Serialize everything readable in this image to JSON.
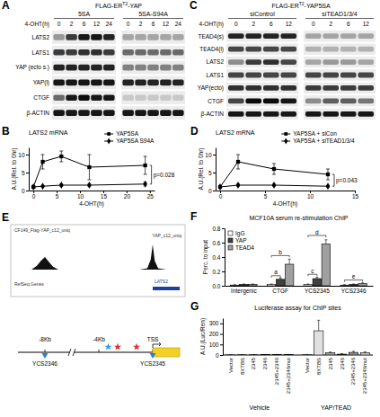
{
  "blots": [
    {
      "panel_label": "A",
      "title": {
        "base": "FLAG-ER",
        "sup": "T2",
        "rest": "-YAP"
      },
      "time_label": "4-OHT(h)",
      "groups": [
        {
          "name": "5SA",
          "times": [
            0,
            2,
            6,
            12,
            24
          ]
        },
        {
          "name": "5SA-S94A",
          "times": [
            0,
            2,
            6,
            12,
            24
          ]
        }
      ],
      "rows": [
        {
          "label": "LATS2",
          "intensity": [
            0.35,
            0.75,
            0.9,
            0.9,
            0.85,
            0.3,
            0.3,
            0.3,
            0.3,
            0.3
          ]
        },
        {
          "label": "LATS1",
          "intensity": [
            0.75,
            0.75,
            0.8,
            0.8,
            0.75,
            0.55,
            0.55,
            0.55,
            0.55,
            0.55
          ]
        },
        {
          "label": "YAP (ecto s.)",
          "intensity": [
            0.85,
            0.85,
            0.85,
            0.85,
            0.85,
            0.45,
            0.45,
            0.45,
            0.45,
            0.45
          ]
        },
        {
          "label": "YAP(l)",
          "intensity": [
            0.9,
            0.9,
            0.9,
            0.9,
            0.9,
            0.85,
            0.85,
            0.85,
            0.85,
            0.85
          ]
        },
        {
          "label": "CTGF",
          "intensity": [
            0.55,
            0.9,
            0.95,
            0.9,
            0.9,
            0.15,
            0.15,
            0.15,
            0.15,
            0.15
          ]
        },
        {
          "label": "β-ACTIN",
          "intensity": [
            0.9,
            0.9,
            0.9,
            0.9,
            0.9,
            0.9,
            0.9,
            0.9,
            0.9,
            0.9
          ]
        }
      ]
    },
    {
      "panel_label": "C",
      "title": {
        "base": "FLAG-ER",
        "sup": "T2",
        "rest": "-YAP5SA"
      },
      "time_label": "4-OHT(h)",
      "groups": [
        {
          "name": "siControl",
          "times": [
            0,
            2,
            6,
            12
          ]
        },
        {
          "name": "siTEAD1/3/4",
          "times": [
            0,
            2,
            6,
            12
          ]
        }
      ],
      "rows": [
        {
          "label": "TEAD4(s)",
          "intensity": [
            0.85,
            0.85,
            0.85,
            0.85,
            0.3,
            0.3,
            0.3,
            0.3
          ]
        },
        {
          "label": "TEAD4(l)",
          "intensity": [
            0.7,
            0.7,
            0.7,
            0.7,
            0.25,
            0.25,
            0.25,
            0.25
          ]
        },
        {
          "label": "LATS2",
          "intensity": [
            0.4,
            0.75,
            0.8,
            0.7,
            0.3,
            0.35,
            0.35,
            0.3
          ]
        },
        {
          "label": "LATS1",
          "intensity": [
            0.7,
            0.7,
            0.7,
            0.7,
            0.7,
            0.7,
            0.7,
            0.7
          ]
        },
        {
          "label": "YAP(ecto)",
          "intensity": [
            0.8,
            0.8,
            0.8,
            0.8,
            0.75,
            0.75,
            0.75,
            0.75
          ]
        },
        {
          "label": "CTGF",
          "intensity": [
            0.7,
            0.95,
            0.95,
            0.9,
            0.4,
            0.6,
            0.6,
            0.5
          ]
        },
        {
          "label": "β-ACTIN",
          "intensity": [
            0.9,
            0.9,
            0.9,
            0.9,
            0.9,
            0.9,
            0.9,
            0.9
          ]
        }
      ]
    }
  ],
  "chart_data": [
    {
      "panel_label": "B",
      "type": "line",
      "title": "LATS2 mRNA",
      "x_label": "4-OHT(h)",
      "y_label": "A.U.(Rel. to 0hr)",
      "x": [
        0,
        2,
        6,
        12,
        24
      ],
      "series": [
        {
          "name": "YAP5SA",
          "color": "#000000",
          "marker": "square",
          "values": [
            1,
            8,
            9.5,
            6.5,
            7
          ],
          "errors": [
            0,
            2,
            1.5,
            3.5,
            2.5
          ]
        },
        {
          "name": "YAP5SA S94A",
          "color": "#000000",
          "marker": "diamond",
          "values": [
            1,
            1.2,
            1.5,
            1.5,
            1.8
          ],
          "errors": [
            0,
            0.2,
            0.3,
            0.3,
            0.5
          ]
        }
      ],
      "xlim": [
        -1,
        26
      ],
      "xticks": [
        0,
        5,
        10,
        15,
        20,
        25
      ],
      "ylim": [
        0,
        12
      ],
      "yticks": [
        0,
        5,
        10
      ],
      "legend": "top right",
      "annotations": [
        {
          "text": "p=0.028",
          "x": 24,
          "y_from": 1.8,
          "y_to": 7
        }
      ]
    },
    {
      "panel_label": "D",
      "type": "line",
      "title": "LATS2 mRNA",
      "x_label": "4-OHT(h)",
      "y_label": "A.U.(Rel. to 0hr)",
      "x": [
        0,
        2,
        6,
        12
      ],
      "series": [
        {
          "name": "YAP5SA + siCon",
          "color": "#000000",
          "marker": "square",
          "values": [
            1,
            8,
            6,
            4.5
          ],
          "errors": [
            0,
            2,
            1.5,
            1.5
          ]
        },
        {
          "name": "YAP5SA + siTEAD1/3/4",
          "color": "#000000",
          "marker": "diamond",
          "values": [
            1,
            1.5,
            1.5,
            1.2
          ],
          "errors": [
            0,
            0.3,
            0.3,
            0.2
          ]
        }
      ],
      "xlim": [
        -0.5,
        15
      ],
      "xticks": [
        0,
        5,
        10,
        15
      ],
      "ylim": [
        0,
        12
      ],
      "yticks": [
        0,
        5,
        10
      ],
      "legend": "top right",
      "annotations": [
        {
          "text": "p=0.043",
          "x": 12,
          "y_from": 1.2,
          "y_to": 4.5
        }
      ]
    },
    {
      "panel_label": "F",
      "type": "bar",
      "title": "MCF10A serum re-stimulation ChIP",
      "y_label": "Perc. to input",
      "categories": [
        "Intergenic",
        "CTGF",
        "YCS2345",
        "YCS2346"
      ],
      "series": [
        {
          "name": "IgG",
          "color": "#ffffff",
          "values": [
            0.01,
            0.02,
            0.02,
            0.01
          ],
          "errors": [
            0.005,
            0.005,
            0.005,
            0.005
          ]
        },
        {
          "name": "YAP",
          "color": "#404040",
          "values": [
            0.02,
            0.09,
            0.1,
            0.02
          ],
          "errors": [
            0.005,
            0.02,
            0.02,
            0.005
          ]
        },
        {
          "name": "TEAD4",
          "color": "#a0a0a0",
          "values": [
            0.02,
            0.3,
            0.58,
            0.03
          ],
          "errors": [
            0.005,
            0.07,
            0.06,
            0.01
          ]
        }
      ],
      "ylim": [
        0,
        0.8
      ],
      "yticks": [
        {
          "value": 0,
          "label": "0.0"
        },
        0.2,
        0.4,
        0.6,
        0.8
      ],
      "legend": "top left",
      "annotations": [
        {
          "text": "a",
          "category": 1,
          "from": 0,
          "to": 1,
          "y": 0.14
        },
        {
          "text": "b",
          "category": 1,
          "from": 0,
          "to": 2,
          "y": 0.42
        },
        {
          "text": "c",
          "category": 2,
          "from": 0,
          "to": 1,
          "y": 0.16
        },
        {
          "text": "d",
          "category": 2,
          "from": 0,
          "to": 2,
          "y": 0.7
        },
        {
          "text": "e",
          "category": 3,
          "from": 0,
          "to": 2,
          "y": 0.08
        }
      ]
    },
    {
      "panel_label": "G",
      "type": "bar",
      "title": "Luciferase assay for ChIP sites",
      "y_label": "A.U.(Luc/Ren)",
      "categories": [
        "Vector",
        "8XTBS",
        "2345",
        "2346",
        "2345+2346",
        "2345+2346mut"
      ],
      "colors": [
        "#ffffff",
        "#e0e0e0",
        "#a0a0a0",
        "#404040",
        "#909090",
        "#c8c8c8"
      ],
      "series": [
        {
          "name": "Vehicle",
          "values": [
            1,
            2,
            2,
            3,
            3,
            4
          ],
          "errors": [
            0.5,
            1,
            1,
            1,
            1,
            1
          ]
        },
        {
          "name": "YAP/TEAD",
          "values": [
            2,
            230,
            20,
            8,
            25,
            22
          ],
          "errors": [
            1,
            100,
            8,
            5,
            10,
            8
          ]
        }
      ],
      "ylim": [
        0,
        350
      ],
      "yticks": [
        0,
        100,
        200,
        300
      ]
    }
  ],
  "diagram": {
    "panel_label": "E",
    "track": {
      "label": "CF149_Flag-YAP_c12_uniq",
      "label_right": "YAP_c12_uniq",
      "x": [
        -10,
        -9,
        -8.6,
        -8.3,
        -8,
        -7.7,
        -7.4,
        -7,
        -4,
        -1,
        -0.4,
        -0.15,
        0,
        0.15,
        0.4,
        1,
        2
      ],
      "y": [
        0,
        0,
        0.15,
        0.35,
        0.5,
        0.3,
        0.12,
        0,
        0,
        0,
        0.05,
        0.4,
        1,
        0.35,
        0.05,
        0,
        0
      ],
      "ylim": [
        0,
        1
      ]
    },
    "genes_label": "RefSeq Genes",
    "gene": {
      "name": "LATS2",
      "start": 0,
      "end": 2
    },
    "xlim": [
      -10,
      2
    ],
    "landmarks": [
      {
        "label": "-8Kb",
        "position": -8
      },
      {
        "label": "-4Kb",
        "position": -4
      },
      {
        "label": "TSS",
        "position": 0
      }
    ],
    "sites": [
      {
        "label": "YCS2346",
        "position": -8
      },
      {
        "label": "YCS2345",
        "position": 0
      }
    ],
    "motifs": [
      {
        "position": -3.3,
        "color": "#3399dd"
      },
      {
        "position": -2.6,
        "color": "#e03030"
      },
      {
        "position": -1.2,
        "color": "#e03030"
      }
    ]
  }
}
